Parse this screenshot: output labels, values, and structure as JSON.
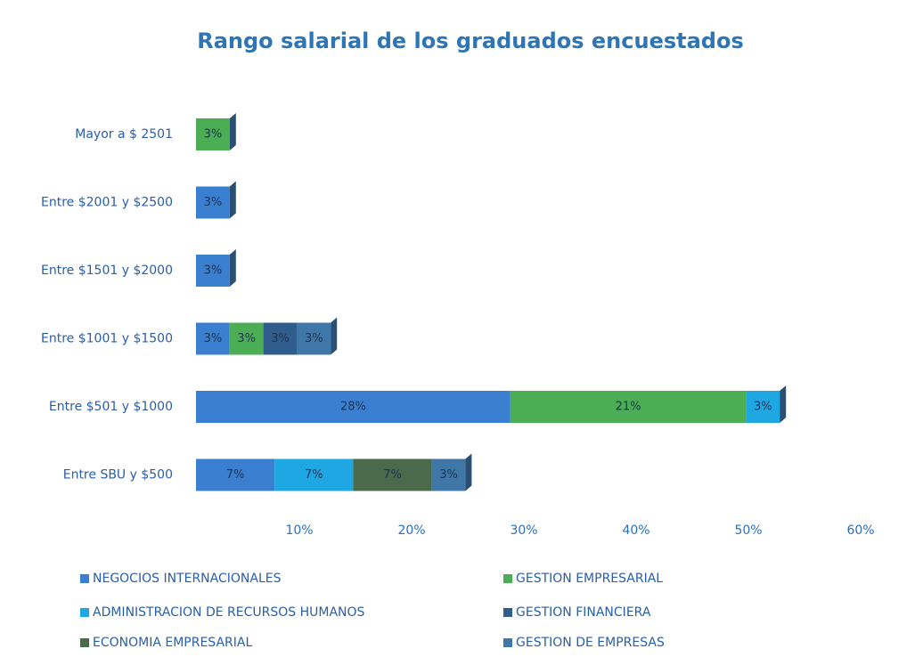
{
  "chart_data": {
    "type": "stacked-bar-horizontal",
    "title": "Rango salarial de los graduados encuestados",
    "categories": [
      "Mayor a $ 2501",
      "Entre $2001 y $2500",
      "Entre $1501 y $2000",
      "Entre $1001 y $1500",
      "Entre $501 y $1000",
      "Entre SBU y $500"
    ],
    "series": [
      {
        "name": "NEGOCIOS INTERNACIONALES",
        "color": "#3a7fd0",
        "values": [
          null,
          3,
          3,
          3,
          28,
          7
        ],
        "value_labels": [
          null,
          "3%",
          "3%",
          "3%",
          "28%",
          "7%"
        ]
      },
      {
        "name": "GESTION EMPRESARIAL",
        "color": "#4cae54",
        "values": [
          3,
          null,
          null,
          3,
          21,
          null
        ],
        "value_labels": [
          "3%",
          null,
          null,
          "3%",
          "21%",
          null
        ]
      },
      {
        "name": "ADMINISTRACION DE RECURSOS HUMANOS",
        "color": "#1fa7e4",
        "values": [
          null,
          null,
          null,
          null,
          3,
          7
        ],
        "value_labels": [
          null,
          null,
          null,
          null,
          "3%",
          "7%"
        ]
      },
      {
        "name": "GESTION FINANCIERA",
        "color": "#305d8c",
        "values": [
          null,
          null,
          null,
          3,
          null,
          null
        ],
        "value_labels": [
          null,
          null,
          null,
          "3%",
          null,
          null
        ]
      },
      {
        "name": "ECONOMIA EMPRESARIAL",
        "color": "#4b6a4b",
        "values": [
          null,
          null,
          null,
          null,
          null,
          7
        ],
        "value_labels": [
          null,
          null,
          null,
          null,
          null,
          "7%"
        ]
      },
      {
        "name": "GESTION DE EMPRESAS",
        "color": "#3f78a8",
        "values": [
          null,
          null,
          null,
          3,
          null,
          3
        ],
        "value_labels": [
          null,
          null,
          null,
          "3%",
          null,
          "3%"
        ]
      }
    ],
    "xlim": [
      0,
      60
    ],
    "xticks": [
      {
        "value": 10,
        "label": "10%"
      },
      {
        "value": 20,
        "label": "20%"
      },
      {
        "value": 30,
        "label": "30%"
      },
      {
        "value": 40,
        "label": "40%"
      },
      {
        "value": 50,
        "label": "50%"
      },
      {
        "value": 60,
        "label": "60%"
      }
    ],
    "grid": false
  }
}
